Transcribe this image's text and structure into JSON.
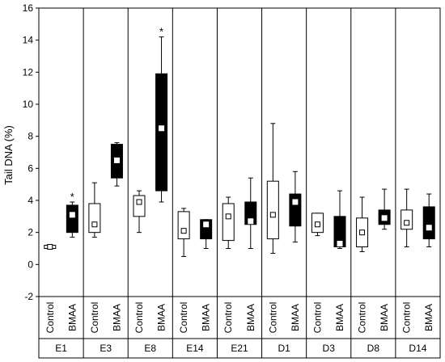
{
  "chart_data": {
    "type": "box",
    "ylabel": "Tail DNA (%)",
    "ylim": [
      -2,
      16
    ],
    "yticks": [
      -2,
      0,
      2,
      4,
      6,
      8,
      10,
      12,
      14,
      16
    ],
    "groups": [
      "E1",
      "E3",
      "E8",
      "E14",
      "E21",
      "D1",
      "D3",
      "D8",
      "D14"
    ],
    "series": [
      {
        "name": "Control",
        "fill": "#ffffff"
      },
      {
        "name": "BMAA",
        "fill": "#000000"
      }
    ],
    "boxes": [
      {
        "group": "E1",
        "series": "Control",
        "min": 1.0,
        "q1": 1.0,
        "median": 1.1,
        "q3": 1.2,
        "max": 1.25,
        "sig": ""
      },
      {
        "group": "E1",
        "series": "BMAA",
        "min": 1.7,
        "q1": 2.0,
        "median": 3.1,
        "q3": 3.7,
        "max": 3.9,
        "sig": "*"
      },
      {
        "group": "E3",
        "series": "Control",
        "min": 1.7,
        "q1": 2.0,
        "median": 2.5,
        "q3": 3.8,
        "max": 5.1,
        "sig": ""
      },
      {
        "group": "E3",
        "series": "BMAA",
        "min": 4.9,
        "q1": 5.4,
        "median": 6.5,
        "q3": 7.5,
        "max": 7.6,
        "sig": ""
      },
      {
        "group": "E8",
        "series": "Control",
        "min": 2.0,
        "q1": 3.0,
        "median": 3.9,
        "q3": 4.3,
        "max": 4.6,
        "sig": ""
      },
      {
        "group": "E8",
        "series": "BMAA",
        "min": 3.9,
        "q1": 4.6,
        "median": 8.5,
        "q3": 11.9,
        "max": 14.2,
        "sig": "*"
      },
      {
        "group": "E14",
        "series": "Control",
        "min": 0.5,
        "q1": 1.6,
        "median": 2.1,
        "q3": 3.3,
        "max": 3.5,
        "sig": ""
      },
      {
        "group": "E14",
        "series": "BMAA",
        "min": 1.0,
        "q1": 1.6,
        "median": 2.5,
        "q3": 2.8,
        "max": 2.8,
        "sig": ""
      },
      {
        "group": "E21",
        "series": "Control",
        "min": 1.0,
        "q1": 1.5,
        "median": 3.0,
        "q3": 3.8,
        "max": 4.2,
        "sig": ""
      },
      {
        "group": "E21",
        "series": "BMAA",
        "min": 1.0,
        "q1": 2.5,
        "median": 2.7,
        "q3": 3.9,
        "max": 5.4,
        "sig": ""
      },
      {
        "group": "D1",
        "series": "Control",
        "min": 0.7,
        "q1": 1.6,
        "median": 3.1,
        "q3": 5.2,
        "max": 8.8,
        "sig": ""
      },
      {
        "group": "D1",
        "series": "BMAA",
        "min": 1.4,
        "q1": 2.4,
        "median": 3.9,
        "q3": 4.4,
        "max": 5.8,
        "sig": ""
      },
      {
        "group": "D3",
        "series": "Control",
        "min": 1.8,
        "q1": 2.0,
        "median": 2.5,
        "q3": 3.2,
        "max": 3.2,
        "sig": ""
      },
      {
        "group": "D3",
        "series": "BMAA",
        "min": 1.0,
        "q1": 1.1,
        "median": 1.3,
        "q3": 3.0,
        "max": 4.6,
        "sig": ""
      },
      {
        "group": "D8",
        "series": "Control",
        "min": 0.8,
        "q1": 1.1,
        "median": 2.0,
        "q3": 2.9,
        "max": 4.2,
        "sig": ""
      },
      {
        "group": "D8",
        "series": "BMAA",
        "min": 2.2,
        "q1": 2.5,
        "median": 2.9,
        "q3": 3.4,
        "max": 4.7,
        "sig": ""
      },
      {
        "group": "D14",
        "series": "Control",
        "min": 1.1,
        "q1": 2.2,
        "median": 2.6,
        "q3": 3.4,
        "max": 4.7,
        "sig": ""
      },
      {
        "group": "D14",
        "series": "BMAA",
        "min": 1.1,
        "q1": 1.6,
        "median": 2.3,
        "q3": 3.6,
        "max": 4.4,
        "sig": ""
      }
    ]
  }
}
